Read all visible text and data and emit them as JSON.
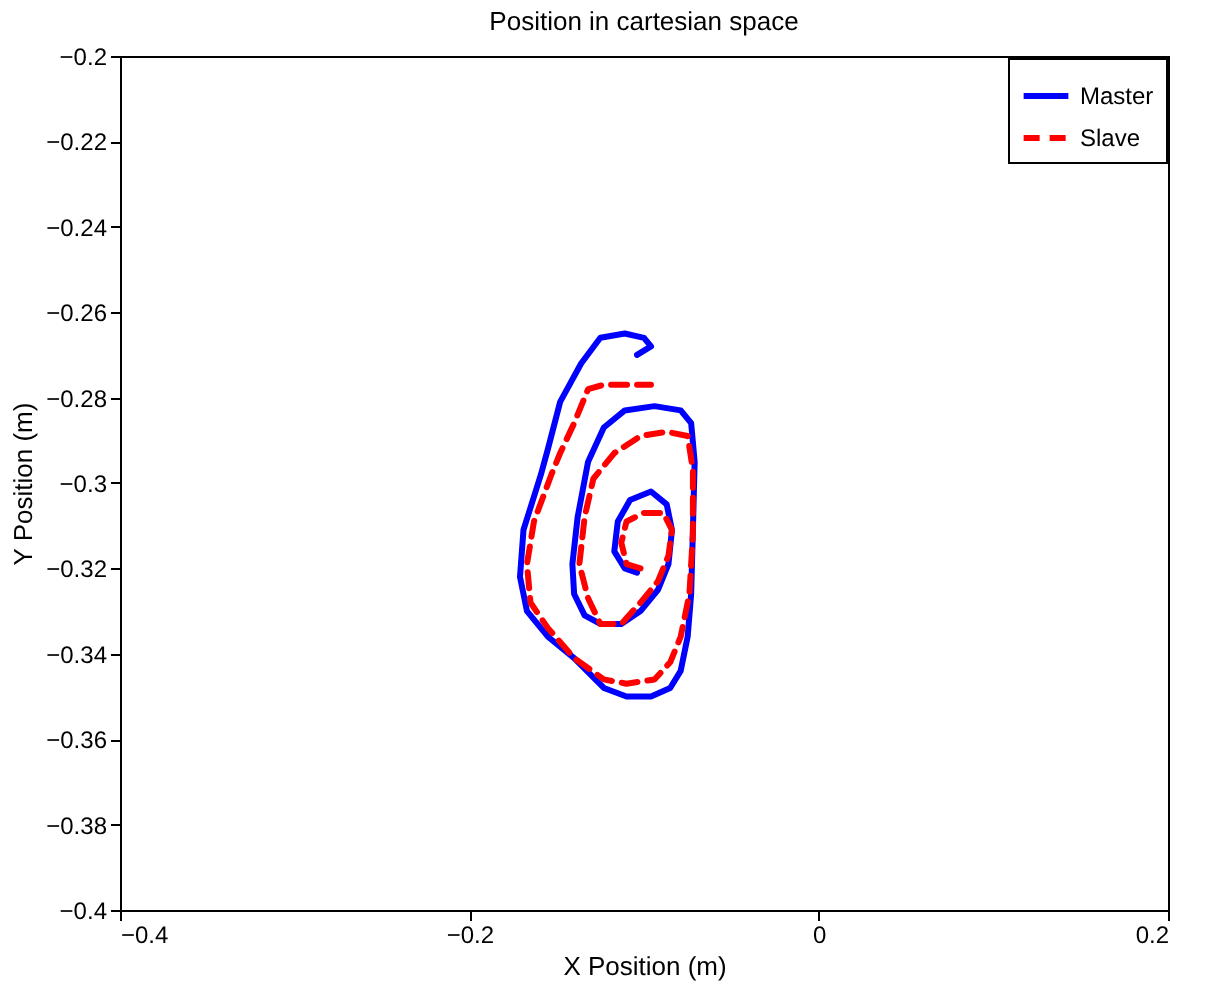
{
  "chart_data": {
    "type": "line",
    "title": "Position in cartesian space",
    "xlabel": "X Position (m)",
    "ylabel": "Y Position (m)",
    "xlim": [
      -0.4,
      0.2
    ],
    "xticks": [
      -0.4,
      -0.2,
      0,
      0.2
    ],
    "ylim": [
      -0.4,
      -0.2
    ],
    "yticks": [
      -0.4,
      -0.38,
      -0.36,
      -0.34,
      -0.32,
      -0.3,
      -0.28,
      -0.26,
      -0.24,
      -0.22,
      -0.2
    ],
    "grid": false,
    "legend": "top right",
    "marker": "none",
    "series": [
      {
        "name": "Master",
        "color": "#0000ff",
        "line_style": "solid",
        "x": [
          -0.104,
          -0.111,
          -0.117,
          -0.115,
          -0.108,
          -0.096,
          -0.087,
          -0.084,
          -0.086,
          -0.092,
          -0.102,
          -0.113,
          -0.125,
          -0.134,
          -0.14,
          -0.141,
          -0.138,
          -0.132,
          -0.123,
          -0.111,
          -0.094,
          -0.079,
          -0.073,
          -0.071,
          -0.072,
          -0.073,
          -0.075,
          -0.079,
          -0.085,
          -0.096,
          -0.11,
          -0.123,
          -0.14,
          -0.155,
          -0.167,
          -0.171,
          -0.169,
          -0.159,
          -0.155,
          -0.148,
          -0.136,
          -0.125,
          -0.111,
          -0.1,
          -0.096,
          -0.104
        ],
        "values": [
          -0.321,
          -0.32,
          -0.316,
          -0.309,
          -0.304,
          -0.302,
          -0.305,
          -0.311,
          -0.319,
          -0.325,
          -0.33,
          -0.333,
          -0.333,
          -0.331,
          -0.326,
          -0.319,
          -0.308,
          -0.295,
          -0.287,
          -0.283,
          -0.282,
          -0.283,
          -0.286,
          -0.295,
          -0.311,
          -0.326,
          -0.336,
          -0.344,
          -0.348,
          -0.35,
          -0.35,
          -0.348,
          -0.341,
          -0.336,
          -0.33,
          -0.322,
          -0.311,
          -0.298,
          -0.292,
          -0.281,
          -0.272,
          -0.266,
          -0.265,
          -0.266,
          -0.268,
          -0.27
        ]
      },
      {
        "name": "Slave",
        "color": "#ff0000",
        "line_style": "dashed",
        "x": [
          -0.102,
          -0.11,
          -0.113,
          -0.11,
          -0.1,
          -0.089,
          -0.084,
          -0.086,
          -0.092,
          -0.102,
          -0.113,
          -0.125,
          -0.132,
          -0.137,
          -0.134,
          -0.129,
          -0.117,
          -0.102,
          -0.087,
          -0.075,
          -0.072,
          -0.072,
          -0.074,
          -0.079,
          -0.085,
          -0.094,
          -0.11,
          -0.123,
          -0.14,
          -0.155,
          -0.165,
          -0.167,
          -0.163,
          -0.153,
          -0.148,
          -0.14,
          -0.132,
          -0.123,
          -0.11,
          -0.096
        ],
        "values": [
          -0.32,
          -0.319,
          -0.314,
          -0.309,
          -0.307,
          -0.307,
          -0.311,
          -0.317,
          -0.323,
          -0.328,
          -0.333,
          -0.333,
          -0.327,
          -0.319,
          -0.308,
          -0.299,
          -0.293,
          -0.289,
          -0.288,
          -0.289,
          -0.297,
          -0.312,
          -0.326,
          -0.336,
          -0.342,
          -0.346,
          -0.347,
          -0.346,
          -0.341,
          -0.334,
          -0.328,
          -0.319,
          -0.309,
          -0.298,
          -0.293,
          -0.286,
          -0.278,
          -0.277,
          -0.277,
          -0.277
        ]
      }
    ]
  }
}
